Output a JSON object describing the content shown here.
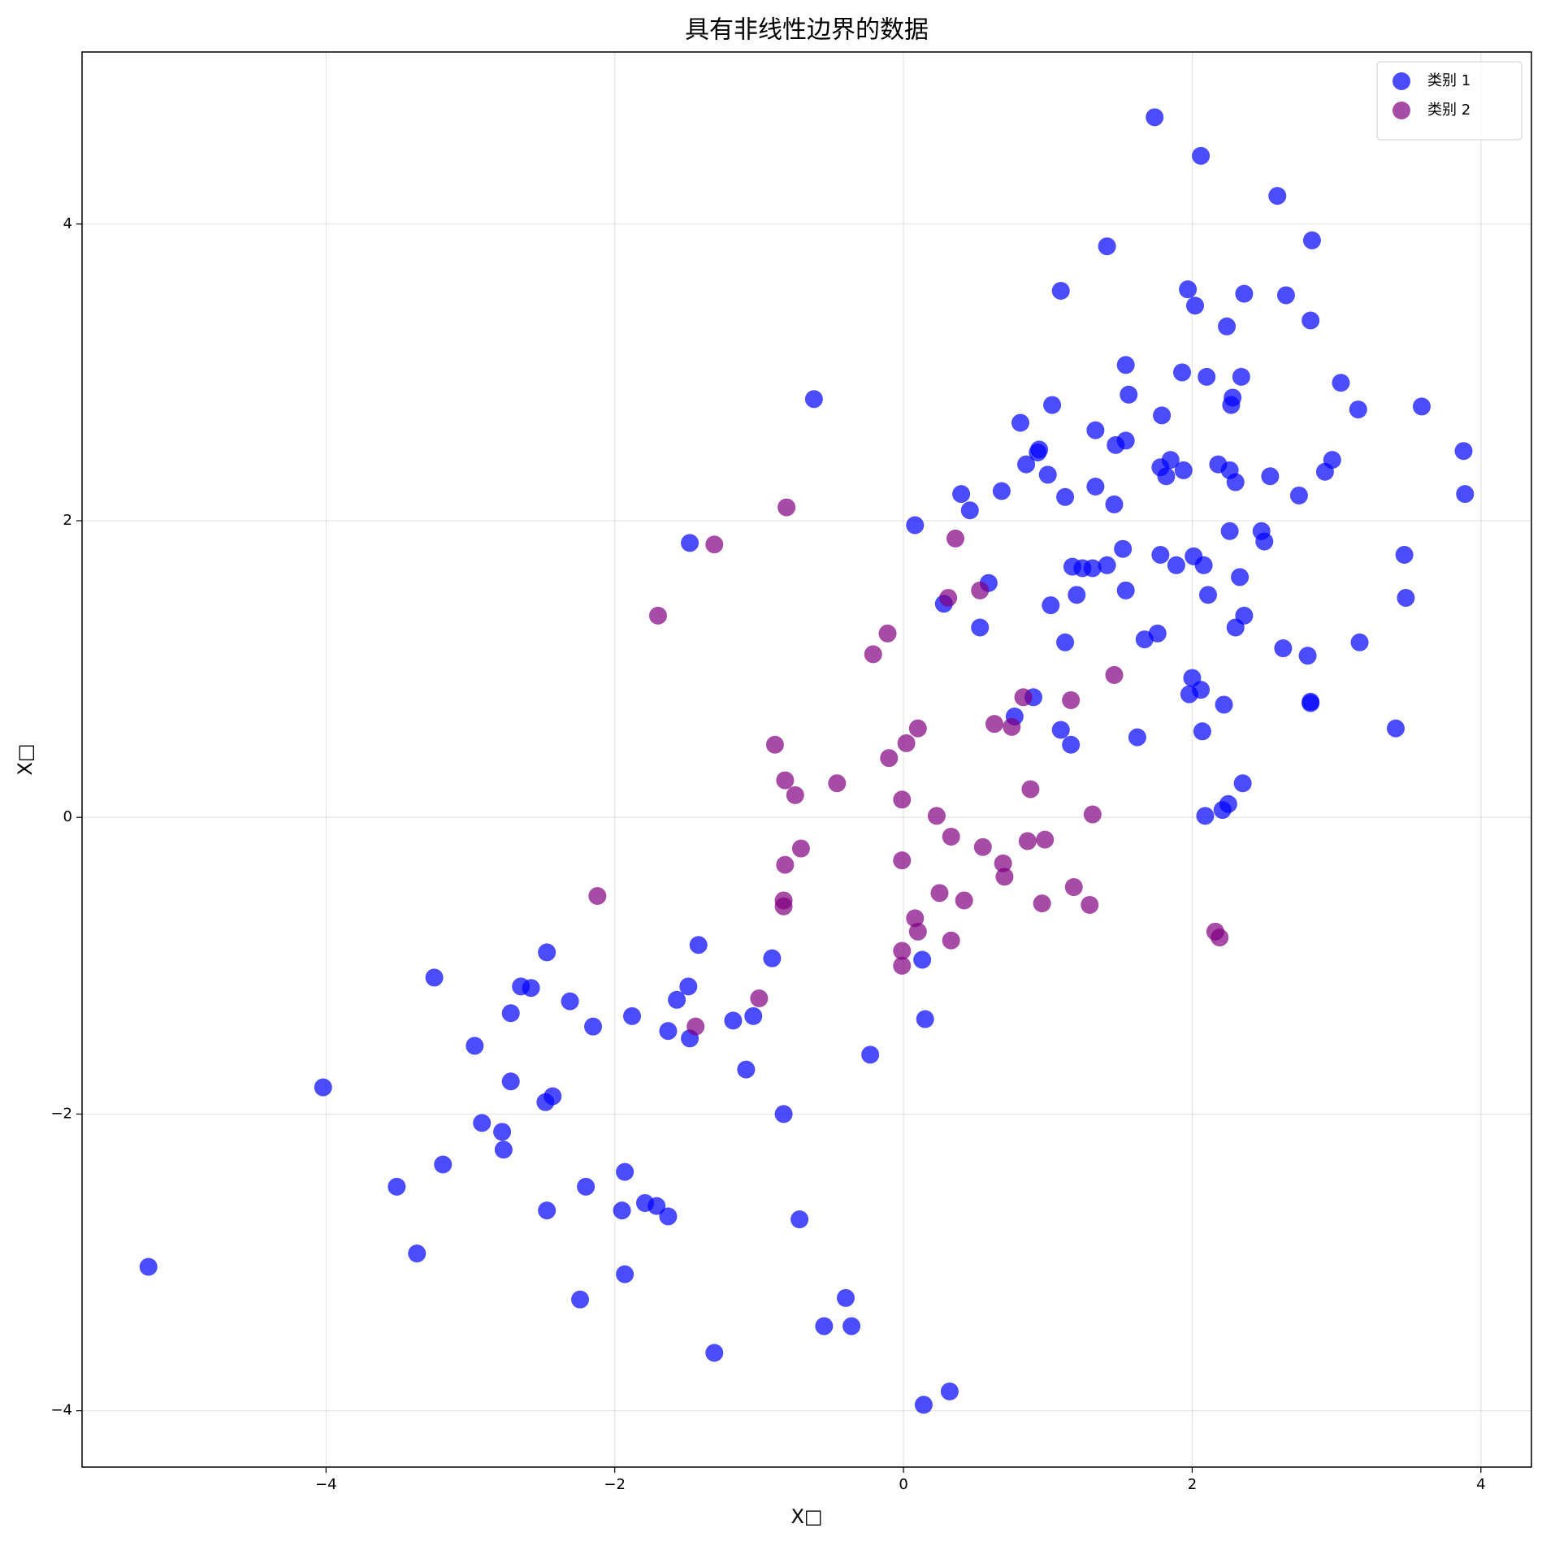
{
  "chart_data": {
    "type": "scatter",
    "title": "具有非线性边界的数据",
    "xlabel": "X□",
    "ylabel": "X□",
    "xlim": [
      -5.69,
      4.35
    ],
    "ylim": [
      -4.38,
      5.16
    ],
    "xticks": [
      {
        "value": -4,
        "label": "−4"
      },
      {
        "value": -2,
        "label": "−2"
      },
      0,
      2,
      4
    ],
    "yticks": [
      {
        "value": -4,
        "label": "−4"
      },
      {
        "value": -2,
        "label": "−2"
      },
      0,
      2,
      4
    ],
    "grid": true,
    "legend": "upper right",
    "series": [
      {
        "name": "类别 1",
        "color": "#0000ff",
        "x": [
          1.74,
          2.06,
          2.59,
          2.83,
          1.41,
          1.09,
          1.97,
          2.02,
          2.36,
          2.65,
          2.82,
          2.24,
          1.54,
          1.93,
          2.1,
          2.34,
          3.03,
          1.56,
          2.28,
          2.27,
          3.15,
          3.59,
          -0.62,
          1.03,
          1.79,
          0.81,
          1.33,
          1.47,
          1.54,
          0.94,
          0.93,
          3.88,
          2.97,
          1.85,
          0.85,
          1.78,
          1.94,
          2.18,
          2.26,
          1.0,
          1.82,
          2.54,
          2.3,
          2.92,
          0.4,
          0.68,
          1.33,
          1.12,
          2.74,
          3.89,
          0.46,
          1.46,
          0.08,
          2.26,
          2.48,
          2.5,
          -1.48,
          1.52,
          1.78,
          2.01,
          3.47,
          1.17,
          1.24,
          1.31,
          1.41,
          1.89,
          2.08,
          0.59,
          2.33,
          1.54,
          1.2,
          2.11,
          3.48,
          0.28,
          1.02,
          2.36,
          0.53,
          2.3,
          1.76,
          1.67,
          1.12,
          3.16,
          2.63,
          2.8,
          2.0,
          2.06,
          1.98,
          0.9,
          2.82,
          2.82,
          2.22,
          0.77,
          1.09,
          2.07,
          3.41,
          1.62,
          1.16,
          2.35,
          2.25,
          2.21,
          2.09,
          0.13,
          0.15,
          -2.47,
          -1.42,
          -3.25,
          -2.65,
          -2.58,
          -1.49,
          -0.91,
          -2.31,
          -1.57,
          -2.72,
          -1.88,
          -1.18,
          -1.04,
          -2.15,
          -1.63,
          -1.48,
          -2.97,
          -0.23,
          -1.09,
          -2.72,
          -4.02,
          -2.43,
          -2.48,
          -0.83,
          -2.92,
          -2.78,
          -2.77,
          -3.19,
          -1.93,
          -3.51,
          -2.2,
          -1.79,
          -1.71,
          -1.95,
          -2.47,
          -1.63,
          -0.72,
          -3.37,
          -5.23,
          -1.93,
          -2.24,
          -0.4,
          -0.55,
          -0.36,
          -1.31,
          0.32,
          0.14
        ],
        "values": [
          4.72,
          4.46,
          4.19,
          3.89,
          3.85,
          3.55,
          3.56,
          3.45,
          3.53,
          3.52,
          3.35,
          3.31,
          3.05,
          3.0,
          2.97,
          2.97,
          2.93,
          2.85,
          2.83,
          2.78,
          2.75,
          2.77,
          2.82,
          2.78,
          2.71,
          2.66,
          2.61,
          2.51,
          2.54,
          2.48,
          2.46,
          2.47,
          2.41,
          2.41,
          2.38,
          2.36,
          2.34,
          2.38,
          2.34,
          2.31,
          2.3,
          2.3,
          2.26,
          2.33,
          2.18,
          2.2,
          2.23,
          2.16,
          2.17,
          2.18,
          2.07,
          2.11,
          1.97,
          1.93,
          1.93,
          1.86,
          1.85,
          1.81,
          1.77,
          1.76,
          1.77,
          1.69,
          1.68,
          1.68,
          1.7,
          1.7,
          1.7,
          1.58,
          1.62,
          1.53,
          1.5,
          1.5,
          1.48,
          1.44,
          1.43,
          1.36,
          1.28,
          1.28,
          1.24,
          1.2,
          1.18,
          1.18,
          1.14,
          1.09,
          0.94,
          0.86,
          0.83,
          0.81,
          0.78,
          0.77,
          0.76,
          0.68,
          0.59,
          0.58,
          0.6,
          0.54,
          0.49,
          0.23,
          0.09,
          0.05,
          0.01,
          -0.96,
          -1.36,
          -0.91,
          -0.86,
          -1.08,
          -1.14,
          -1.15,
          -1.14,
          -0.95,
          -1.24,
          -1.23,
          -1.32,
          -1.34,
          -1.37,
          -1.34,
          -1.41,
          -1.44,
          -1.49,
          -1.54,
          -1.6,
          -1.7,
          -1.78,
          -1.82,
          -1.88,
          -1.92,
          -2.0,
          -2.06,
          -2.12,
          -2.24,
          -2.34,
          -2.39,
          -2.49,
          -2.49,
          -2.6,
          -2.62,
          -2.65,
          -2.65,
          -2.69,
          -2.71,
          -2.94,
          -3.03,
          -3.08,
          -3.25,
          -3.24,
          -3.43,
          -3.43,
          -3.61,
          -3.87,
          -3.96
        ]
      },
      {
        "name": "类别 2",
        "color": "#800080",
        "x": [
          -0.81,
          -1.31,
          0.36,
          0.53,
          0.31,
          -1.7,
          -0.11,
          -0.21,
          1.46,
          0.83,
          1.16,
          0.63,
          0.75,
          0.1,
          0.02,
          -0.89,
          -0.1,
          -0.46,
          -0.82,
          -0.75,
          0.88,
          -0.01,
          0.23,
          1.31,
          0.33,
          0.98,
          0.86,
          0.55,
          -0.71,
          -0.01,
          0.69,
          -0.82,
          0.7,
          1.18,
          0.25,
          -2.12,
          0.42,
          -0.83,
          -0.83,
          0.96,
          1.29,
          0.08,
          2.16,
          0.1,
          2.19,
          0.33,
          -0.01,
          -0.01,
          -1.0,
          -1.44
        ],
        "values": [
          2.09,
          1.84,
          1.88,
          1.53,
          1.48,
          1.36,
          1.24,
          1.1,
          0.96,
          0.81,
          0.79,
          0.63,
          0.61,
          0.6,
          0.5,
          0.49,
          0.4,
          0.23,
          0.25,
          0.15,
          0.19,
          0.12,
          0.01,
          0.02,
          -0.13,
          -0.15,
          -0.16,
          -0.2,
          -0.21,
          -0.29,
          -0.31,
          -0.32,
          -0.4,
          -0.47,
          -0.51,
          -0.53,
          -0.56,
          -0.56,
          -0.6,
          -0.58,
          -0.59,
          -0.68,
          -0.77,
          -0.77,
          -0.81,
          -0.83,
          -0.9,
          -1.0,
          -1.22,
          -1.41
        ]
      }
    ]
  }
}
